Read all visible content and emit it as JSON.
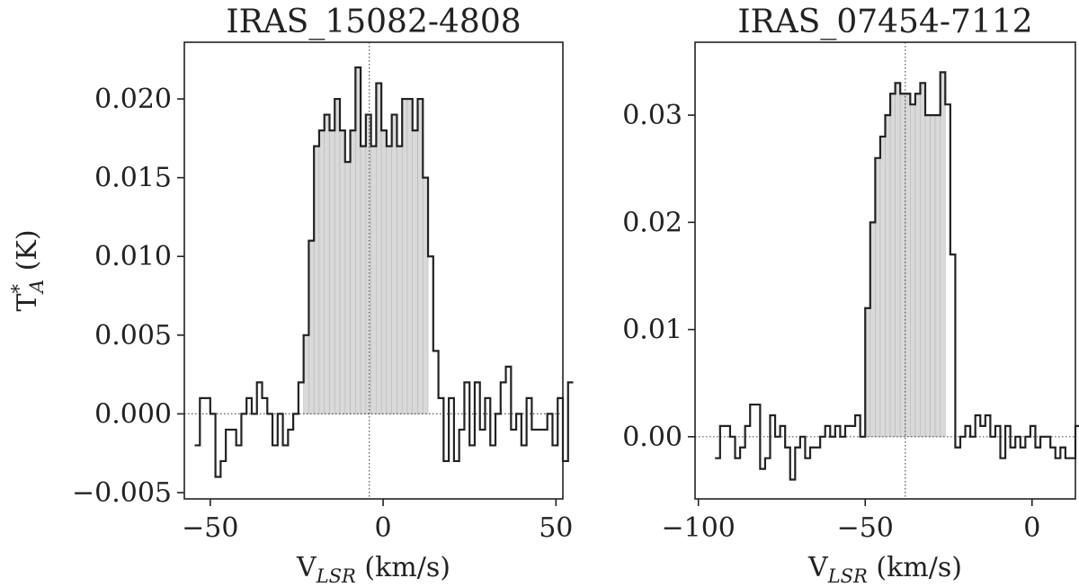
{
  "chart_data": [
    {
      "type": "step",
      "title": "IRAS_15082-4808",
      "xlabel_main": "V",
      "xlabel_sub": "LSR",
      "xlabel_unit": " (km/s)",
      "ylabel_main": "T",
      "ylabel_sup": "*",
      "ylabel_sub": "A",
      "ylabel_unit": " (K)",
      "xlim": [
        -57.5,
        52
      ],
      "ylim": [
        -0.0054,
        0.0236
      ],
      "xticks": [
        -50,
        0,
        50
      ],
      "xtick_labels": [
        "−50",
        "0",
        "50"
      ],
      "yticks": [
        -0.005,
        0.0,
        0.005,
        0.01,
        0.015,
        0.02
      ],
      "ytick_labels": [
        "−0.005",
        "0.000",
        "0.005",
        "0.010",
        "0.015",
        "0.020"
      ],
      "vline_x": -4,
      "hline_y": 0,
      "fill_range": [
        -23,
        13
      ],
      "x_start": -54.5,
      "x_step": 1.5,
      "values": [
        -0.002,
        0.001,
        0.001,
        0.0,
        -0.004,
        -0.003,
        -0.001,
        -0.001,
        -0.002,
        0.0,
        0.001,
        0.0,
        0.002,
        0.001,
        0.0,
        -0.002,
        0.0,
        -0.002,
        -0.001,
        0.0,
        0.002,
        0.005,
        0.011,
        0.017,
        0.018,
        0.019,
        0.018,
        0.02,
        0.018,
        0.016,
        0.018,
        0.022,
        0.017,
        0.019,
        0.017,
        0.021,
        0.018,
        0.017,
        0.019,
        0.017,
        0.02,
        0.02,
        0.018,
        0.02,
        0.015,
        0.01,
        0.004,
        0.001,
        -0.003,
        0.001,
        -0.003,
        -0.001,
        0.002,
        -0.002,
        0.002,
        -0.001,
        0.001,
        -0.002,
        0.0,
        0.002,
        0.003,
        -0.001,
        0.0,
        -0.002,
        0.001,
        -0.001,
        -0.001,
        -0.001,
        0.0,
        -0.002,
        0.001,
        -0.003,
        0.002
      ]
    },
    {
      "type": "step",
      "title": "IRAS_07454-7112",
      "xlabel_main": "V",
      "xlabel_sub": "LSR",
      "xlabel_unit": " (km/s)",
      "xlim": [
        -101,
        13
      ],
      "ylim": [
        -0.0058,
        0.0368
      ],
      "xticks": [
        -100,
        -50,
        0
      ],
      "xtick_labels": [
        "−100",
        "−50",
        "0"
      ],
      "yticks": [
        0.0,
        0.01,
        0.02,
        0.03
      ],
      "ytick_labels": [
        "0.00",
        "0.01",
        "0.02",
        "0.03"
      ],
      "vline_x": -38,
      "hline_y": 0,
      "fill_range": [
        -51,
        -25
      ],
      "x_start": -95,
      "x_step": 1.5,
      "values": [
        -0.002,
        0.001,
        0.001,
        0.0,
        -0.002,
        -0.001,
        0.001,
        0.003,
        0.003,
        -0.003,
        -0.002,
        0.002,
        0.0,
        0.001,
        -0.001,
        -0.004,
        -0.001,
        0.0,
        -0.002,
        -0.001,
        -0.001,
        0.0,
        0.001,
        0.0,
        0.001,
        0.0,
        0.001,
        0.001,
        0.002,
        0.0,
        0.012,
        0.02,
        0.026,
        0.028,
        0.03,
        0.032,
        0.033,
        0.032,
        0.032,
        0.031,
        0.032,
        0.033,
        0.03,
        0.03,
        0.03,
        0.034,
        0.031,
        0.017,
        -0.001,
        0.0,
        0.001,
        0.0,
        0.002,
        0.001,
        0.002,
        0.0,
        0.001,
        -0.002,
        0.001,
        -0.001,
        0.0,
        -0.001,
        0.0,
        0.001,
        -0.001,
        0.0,
        0.0,
        -0.001,
        -0.002,
        -0.001,
        -0.002,
        -0.002,
        0.001
      ]
    }
  ]
}
